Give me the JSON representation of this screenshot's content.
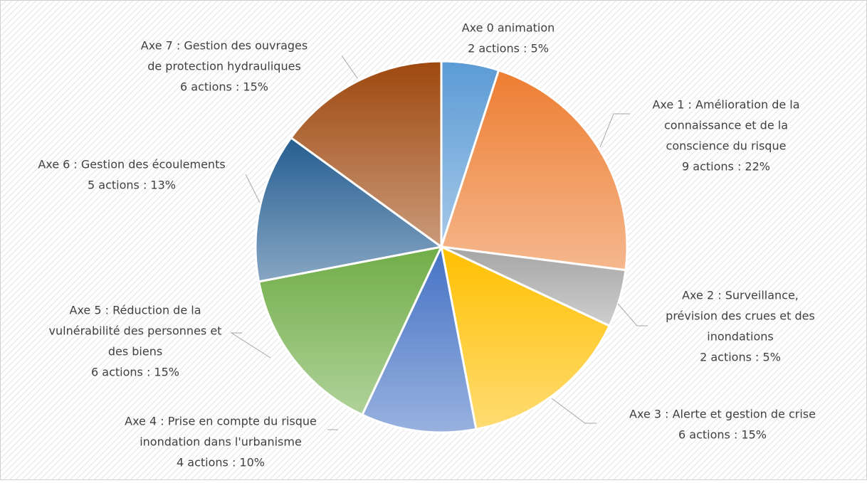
{
  "chart_data": {
    "type": "pie",
    "categories": [
      [
        "Axe 0 animation"
      ],
      [
        "Axe 1 : Amélioration de la",
        "connaissance et de la",
        "conscience du risque"
      ],
      [
        "Axe 2 : Surveillance,",
        "prévision des crues et des",
        "inondations"
      ],
      [
        "Axe 3 : Alerte et gestion de crise"
      ],
      [
        "Axe 4 : Prise en compte du risque",
        "inondation dans l'urbanisme"
      ],
      [
        "Axe 5 : Réduction de la",
        "vulnérabilité des personnes et",
        "des biens"
      ],
      [
        "Axe 6 : Gestion des écoulements"
      ],
      [
        "Axe 7 : Gestion des ouvrages",
        "de protection hydrauliques"
      ]
    ],
    "values": [
      5,
      22,
      5,
      15,
      10,
      15,
      13,
      15
    ],
    "value_labels": [
      "2 actions : 5%",
      "9 actions : 22%",
      "2 actions : 5%",
      "6 actions : 15%",
      "4 actions : 10%",
      "6 actions : 15%",
      "5 actions : 13%",
      "6 actions : 15%"
    ],
    "colors": [
      "#5b9bd5",
      "#ed7d31",
      "#a5a5a5",
      "#ffc000",
      "#4472c4",
      "#70ad47",
      "#255e91",
      "#9e480e"
    ]
  }
}
